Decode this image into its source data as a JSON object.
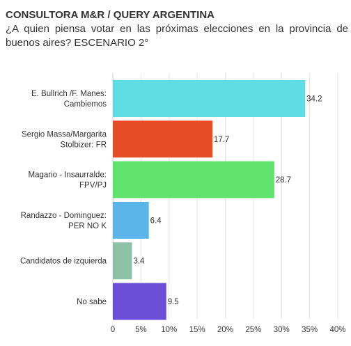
{
  "chart_data": {
    "type": "bar",
    "orientation": "horizontal",
    "title": "CONSULTORA M&R / QUERY ARGENTINA",
    "subtitle": "¿A quien piensa votar en las próximas elecciones en la provincia de buenos aires? ESCENARIO 2°",
    "categories": [
      [
        "E. Bullrich /F. Manes:",
        "Cambiemos"
      ],
      [
        "Sergio Massa/Margarita",
        "Stolbizer: FR"
      ],
      [
        "Magario - Insaurralde:",
        "FPV/PJ"
      ],
      [
        "Randazzo - Dominguez:",
        "PER NO K"
      ],
      [
        "Candidatos de izquierda"
      ],
      [
        "No sabe"
      ]
    ],
    "values": [
      34.2,
      17.7,
      28.7,
      6.4,
      3.4,
      9.5
    ],
    "value_labels": [
      "34.2",
      "17.7",
      "28.7",
      "6.4",
      "3.4",
      "9.5"
    ],
    "colors": [
      "#5fdde5",
      "#e44d26",
      "#5fe36c",
      "#5db4e6",
      "#8fc1a6",
      "#6a4fd6"
    ],
    "xlim": [
      0,
      40
    ],
    "xticks": [
      "0",
      "5%",
      "10%",
      "15%",
      "20%",
      "25%",
      "30%",
      "35%",
      "40%"
    ],
    "xlabel": "",
    "ylabel": "",
    "grid": "vertical"
  }
}
